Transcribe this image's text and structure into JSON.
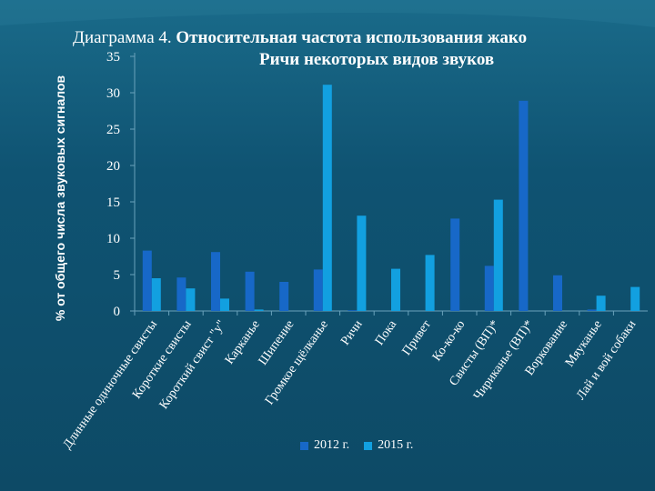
{
  "chart_data": {
    "type": "bar",
    "title": "Диаграмма 4. Относительная частота использования жако Ричи некоторых видов звуков",
    "title_parts": {
      "prefix": "Диаграмма 4.",
      "bold_line1": "Относительная частота использования жако",
      "bold_line2": "Ричи некоторых видов звуков"
    },
    "ylabel": "% от общего числа звуковых сигналов",
    "xlabel": "",
    "ylim": [
      0,
      35
    ],
    "yticks": [
      "0",
      "5",
      "10",
      "15",
      "20",
      "25",
      "30",
      "35"
    ],
    "grid": false,
    "legend_position": "bottom",
    "categories": [
      "Длинные одиночные свисты",
      "Короткие свисты",
      "Короткий свист \"у\"",
      "Карканье",
      "Шипение",
      "Громкое щёлканье",
      "Ричи",
      "Пока",
      "Привет",
      "Ко-ко-ко",
      "Свисты (ВП)*",
      "Чириканье (ВП)*",
      "Воркование",
      "Мяуканье",
      "Лай и вой собаки"
    ],
    "series": [
      {
        "name": "2012 г.",
        "color": "#1768c8",
        "values": [
          8.3,
          4.6,
          8.1,
          5.4,
          4.0,
          5.7,
          0.1,
          0,
          0,
          12.7,
          6.2,
          28.9,
          4.9,
          0.2,
          0
        ]
      },
      {
        "name": "2015 г.",
        "color": "#12a0e0",
        "values": [
          4.5,
          3.1,
          1.7,
          0.2,
          0,
          31.1,
          13.1,
          5.8,
          7.7,
          0,
          15.3,
          0,
          0,
          2.1,
          3.3
        ]
      }
    ]
  }
}
